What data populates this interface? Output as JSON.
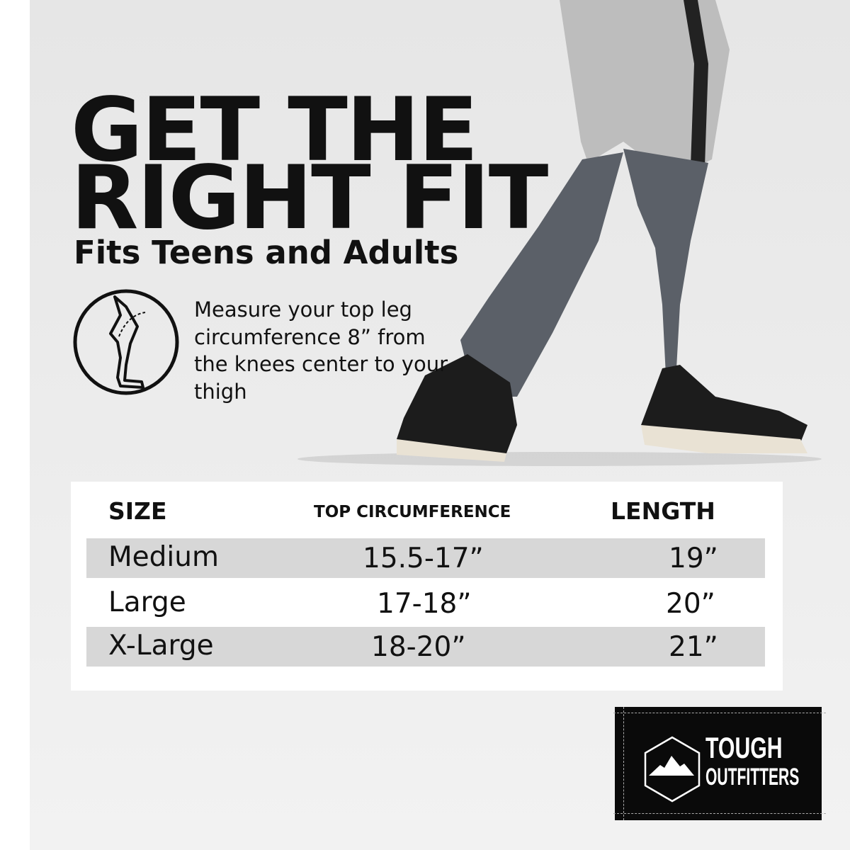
{
  "headline": {
    "line1": "GET THE",
    "line2": "RIGHT FIT"
  },
  "subtitle": "Fits Teens and Adults",
  "measure_instruction": "Measure your top leg circumference 8” from the knees center to your thigh",
  "icons": {
    "measure": "leg-measure-icon",
    "logo": "mountain-hexagon-icon"
  },
  "size_table": {
    "headers": [
      "SIZE",
      "TOP CIRCUMFERENCE",
      "LENGTH"
    ],
    "rows": [
      {
        "size": "Medium",
        "circumference": "15.5-17”",
        "length": "19”"
      },
      {
        "size": "Large",
        "circumference": "17-18”",
        "length": "20”"
      },
      {
        "size": "X-Large",
        "circumference": "18-20”",
        "length": "21”"
      }
    ]
  },
  "brand": {
    "line1": "TOUGH",
    "line2": "OUTFITTERS"
  },
  "colors": {
    "sleeve": "#5b6068",
    "shorts": "#bdbdbd",
    "row_shade": "#d7d7d7"
  }
}
